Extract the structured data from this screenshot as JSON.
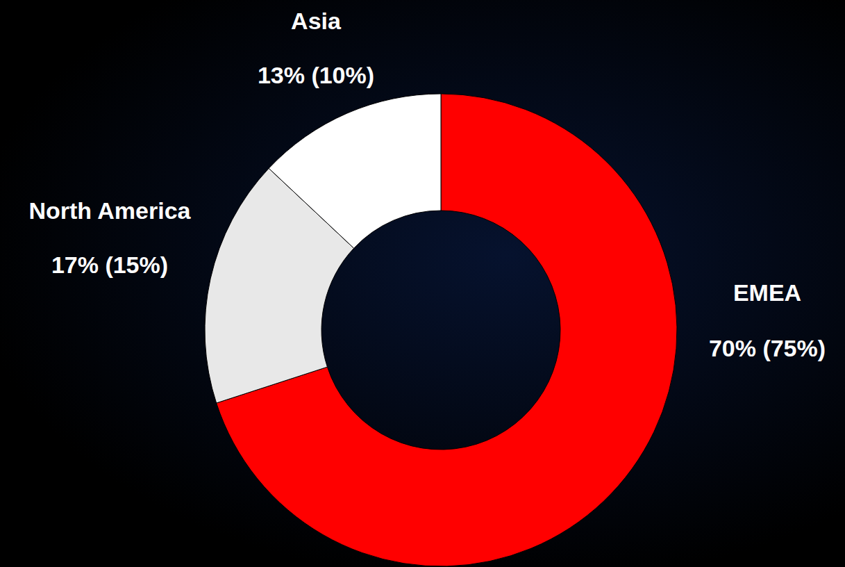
{
  "chart_data": {
    "type": "donut",
    "categories": [
      "EMEA",
      "North America",
      "Asia"
    ],
    "values": [
      70,
      17,
      13
    ],
    "value_labels": [
      "70% (75%)",
      "17% (15%)",
      "13% (10%)"
    ],
    "colors": [
      "#ff0000",
      "#e8e8e8",
      "#ffffff"
    ],
    "data_labels": true
  }
}
